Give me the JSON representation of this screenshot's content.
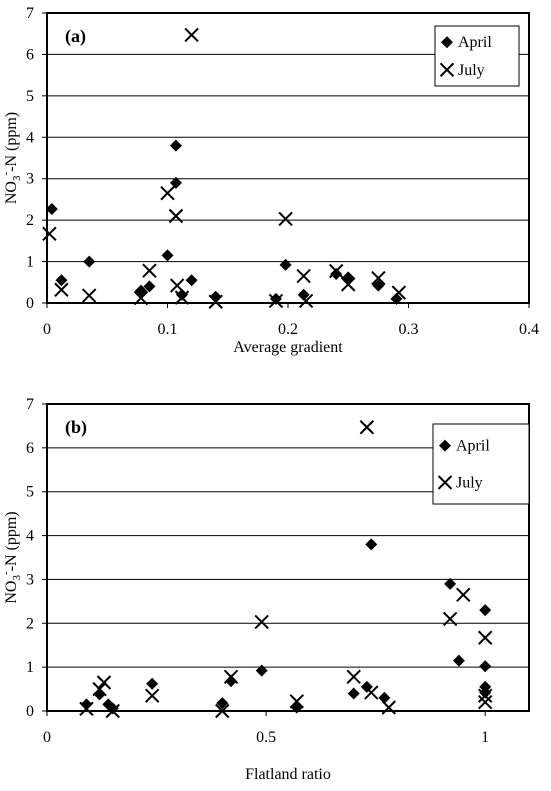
{
  "chart_data": [
    {
      "type": "scatter",
      "panel_label": "(a)",
      "xlabel": "Average gradient",
      "ylabel_main": "NO",
      "ylabel_sub": "3",
      "ylabel_sup": "-",
      "ylabel_rest": "-N (ppm)",
      "xlim": [
        0,
        0.4
      ],
      "ylim": [
        0,
        7
      ],
      "x_ticks": [
        "0",
        "0.1",
        "0.2",
        "0.3",
        "0.4"
      ],
      "y_ticks": [
        "0",
        "1",
        "2",
        "3",
        "4",
        "5",
        "6",
        "7"
      ],
      "grid": "horizontal",
      "legend_position": "top-right",
      "series": [
        {
          "name": "April",
          "marker": "diamond",
          "points": [
            [
              0.004,
              2.27
            ],
            [
              0.012,
              0.55
            ],
            [
              0.035,
              1.0
            ],
            [
              0.078,
              0.3
            ],
            [
              0.085,
              0.4
            ],
            [
              0.1,
              1.15
            ],
            [
              0.107,
              3.8
            ],
            [
              0.107,
              2.9
            ],
            [
              0.112,
              0.2
            ],
            [
              0.12,
              0.55
            ],
            [
              0.14,
              0.15
            ],
            [
              0.19,
              0.1
            ],
            [
              0.198,
              0.92
            ],
            [
              0.213,
              0.2
            ],
            [
              0.24,
              0.7
            ],
            [
              0.25,
              0.62
            ],
            [
              0.275,
              0.42
            ],
            [
              0.29,
              0.1
            ]
          ]
        },
        {
          "name": "July",
          "marker": "x",
          "points": [
            [
              0.002,
              1.67
            ],
            [
              0.012,
              0.32
            ],
            [
              0.035,
              0.18
            ],
            [
              0.078,
              0.12
            ],
            [
              0.085,
              0.78
            ],
            [
              0.1,
              2.65
            ],
            [
              0.107,
              2.1
            ],
            [
              0.108,
              0.42
            ],
            [
              0.112,
              0.13
            ],
            [
              0.12,
              6.47
            ],
            [
              0.14,
              0.03
            ],
            [
              0.19,
              0.05
            ],
            [
              0.198,
              2.03
            ],
            [
              0.213,
              0.65
            ],
            [
              0.215,
              0.05
            ],
            [
              0.24,
              0.77
            ],
            [
              0.25,
              0.45
            ],
            [
              0.275,
              0.6
            ],
            [
              0.292,
              0.25
            ]
          ]
        }
      ]
    },
    {
      "type": "scatter",
      "panel_label": "(b)",
      "xlabel": "Flatland ratio",
      "ylabel_main": "NO",
      "ylabel_sub": "3",
      "ylabel_sup": "-",
      "ylabel_rest": "-N (ppm)",
      "xlim": [
        0,
        1.1
      ],
      "ylim": [
        0,
        7
      ],
      "x_ticks": [
        "0",
        "0.5",
        "1"
      ],
      "x_tick_values": [
        0,
        0.5,
        1
      ],
      "y_ticks": [
        "0",
        "1",
        "2",
        "3",
        "4",
        "5",
        "6",
        "7"
      ],
      "grid": "horizontal",
      "legend_position": "top-right",
      "series": [
        {
          "name": "April",
          "marker": "diamond",
          "points": [
            [
              0.09,
              0.15
            ],
            [
              0.12,
              0.38
            ],
            [
              0.14,
              0.15
            ],
            [
              0.15,
              0.06
            ],
            [
              0.24,
              0.62
            ],
            [
              0.4,
              0.18
            ],
            [
              0.42,
              0.68
            ],
            [
              0.49,
              0.92
            ],
            [
              0.57,
              0.08
            ],
            [
              0.7,
              0.4
            ],
            [
              0.73,
              0.55
            ],
            [
              0.74,
              3.8
            ],
            [
              0.77,
              0.3
            ],
            [
              0.92,
              2.9
            ],
            [
              0.94,
              1.15
            ],
            [
              1.0,
              2.3
            ],
            [
              1.0,
              1.02
            ],
            [
              1.0,
              0.55
            ],
            [
              1.0,
              0.42
            ]
          ]
        },
        {
          "name": "July",
          "marker": "x",
          "points": [
            [
              0.09,
              0.05
            ],
            [
              0.12,
              0.5
            ],
            [
              0.13,
              0.65
            ],
            [
              0.15,
              0.0
            ],
            [
              0.24,
              0.35
            ],
            [
              0.4,
              0.0
            ],
            [
              0.42,
              0.78
            ],
            [
              0.49,
              2.03
            ],
            [
              0.57,
              0.22
            ],
            [
              0.7,
              0.78
            ],
            [
              0.73,
              6.47
            ],
            [
              0.74,
              0.42
            ],
            [
              0.78,
              0.08
            ],
            [
              0.92,
              2.1
            ],
            [
              0.95,
              2.65
            ],
            [
              1.0,
              1.67
            ],
            [
              1.0,
              0.35
            ],
            [
              1.0,
              0.2
            ]
          ]
        }
      ]
    }
  ]
}
